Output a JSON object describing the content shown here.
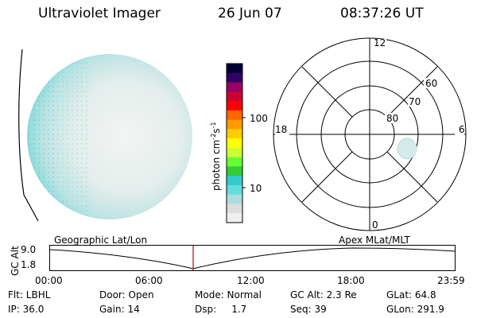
{
  "header": {
    "instrument": "Ultraviolet Imager",
    "date": "26 Jun 07",
    "time": "08:37:26 UT"
  },
  "colorbar": {
    "unit_label": "photon cm",
    "unit_exp1": "-2",
    "unit_s": "s",
    "unit_exp2": "-1",
    "ticks": [
      "100",
      "10"
    ],
    "colors": [
      "#000033",
      "#330066",
      "#990066",
      "#cc0033",
      "#ff0000",
      "#ff6600",
      "#ff9900",
      "#ffcc00",
      "#ffff00",
      "#ccff33",
      "#66ff33",
      "#33cc33",
      "#33cccc",
      "#66dddd",
      "#aadddd",
      "#dddddd",
      "#f0f0f0"
    ]
  },
  "polar_plot": {
    "hour_labels": [
      "12",
      "18",
      "6",
      "0"
    ],
    "lat_labels": [
      "60",
      "70",
      "80"
    ]
  },
  "timeline": {
    "left_title": "Geographic Lat/Lon",
    "right_title": "Apex  MLat/MLT",
    "axis_label": "GC Alt",
    "y_ticks": [
      "9.0",
      "1.8"
    ],
    "x_ticks": [
      "00:00",
      "06:00",
      "12:00",
      "18:00",
      "23:59"
    ],
    "marker_color": "#cc0000"
  },
  "status": {
    "row1": [
      "Flt: LBHL",
      "Door: Open",
      "Mode: Normal",
      "GC Alt: 2.3 Re",
      "GLat:  64.8"
    ],
    "row2": [
      "IP: 36.0",
      "Gain: 14",
      "Dsp:     1.7",
      "Seq: 39",
      "GLon: 291.9"
    ]
  }
}
